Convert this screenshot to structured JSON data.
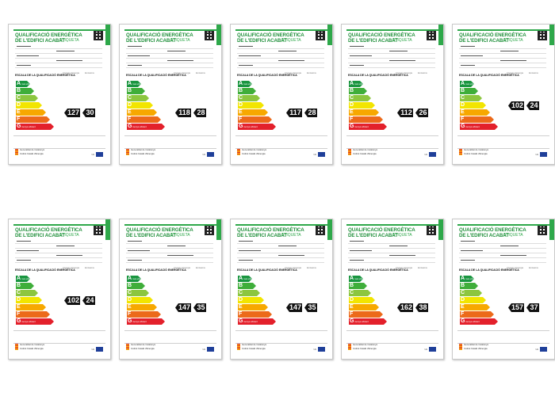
{
  "label_template": {
    "title_line1": "QUALIFICACIÓ ENERGÈTICA",
    "title_line2": "DE L'EDIFICI ACABAT",
    "etiqueta": "ETIQUETA",
    "scale_title": "ESCALA DE LA QUALIFICACIÓ ENERGÈTICA",
    "col1": "Consum d'energia",
    "col2": "Emissions",
    "letters": [
      "A",
      "B",
      "C",
      "D",
      "E",
      "F",
      "G"
    ],
    "more_efficient": "més eficient",
    "less_efficient": "menys eficient",
    "footer_line1": "Generalitat de Catalunya",
    "footer_line2": "Institut Català d'Energia",
    "eu_label": "UE",
    "colors": {
      "green": "#2ea84a",
      "bar_colors": [
        "#1a9640",
        "#3fae3a",
        "#8cc63f",
        "#f2e500",
        "#f7a800",
        "#ec6a1a",
        "#e3202b"
      ]
    }
  },
  "cards": [
    {
      "consumption": "127",
      "emissions": "30"
    },
    {
      "consumption": "118",
      "emissions": "28"
    },
    {
      "consumption": "117",
      "emissions": "28"
    },
    {
      "consumption": "112",
      "emissions": "26"
    },
    {
      "consumption": "102",
      "emissions": "24"
    },
    {
      "consumption": "102",
      "emissions": "24"
    },
    {
      "consumption": "147",
      "emissions": "35"
    },
    {
      "consumption": "147",
      "emissions": "35"
    },
    {
      "consumption": "162",
      "emissions": "38"
    },
    {
      "consumption": "157",
      "emissions": "37"
    }
  ]
}
